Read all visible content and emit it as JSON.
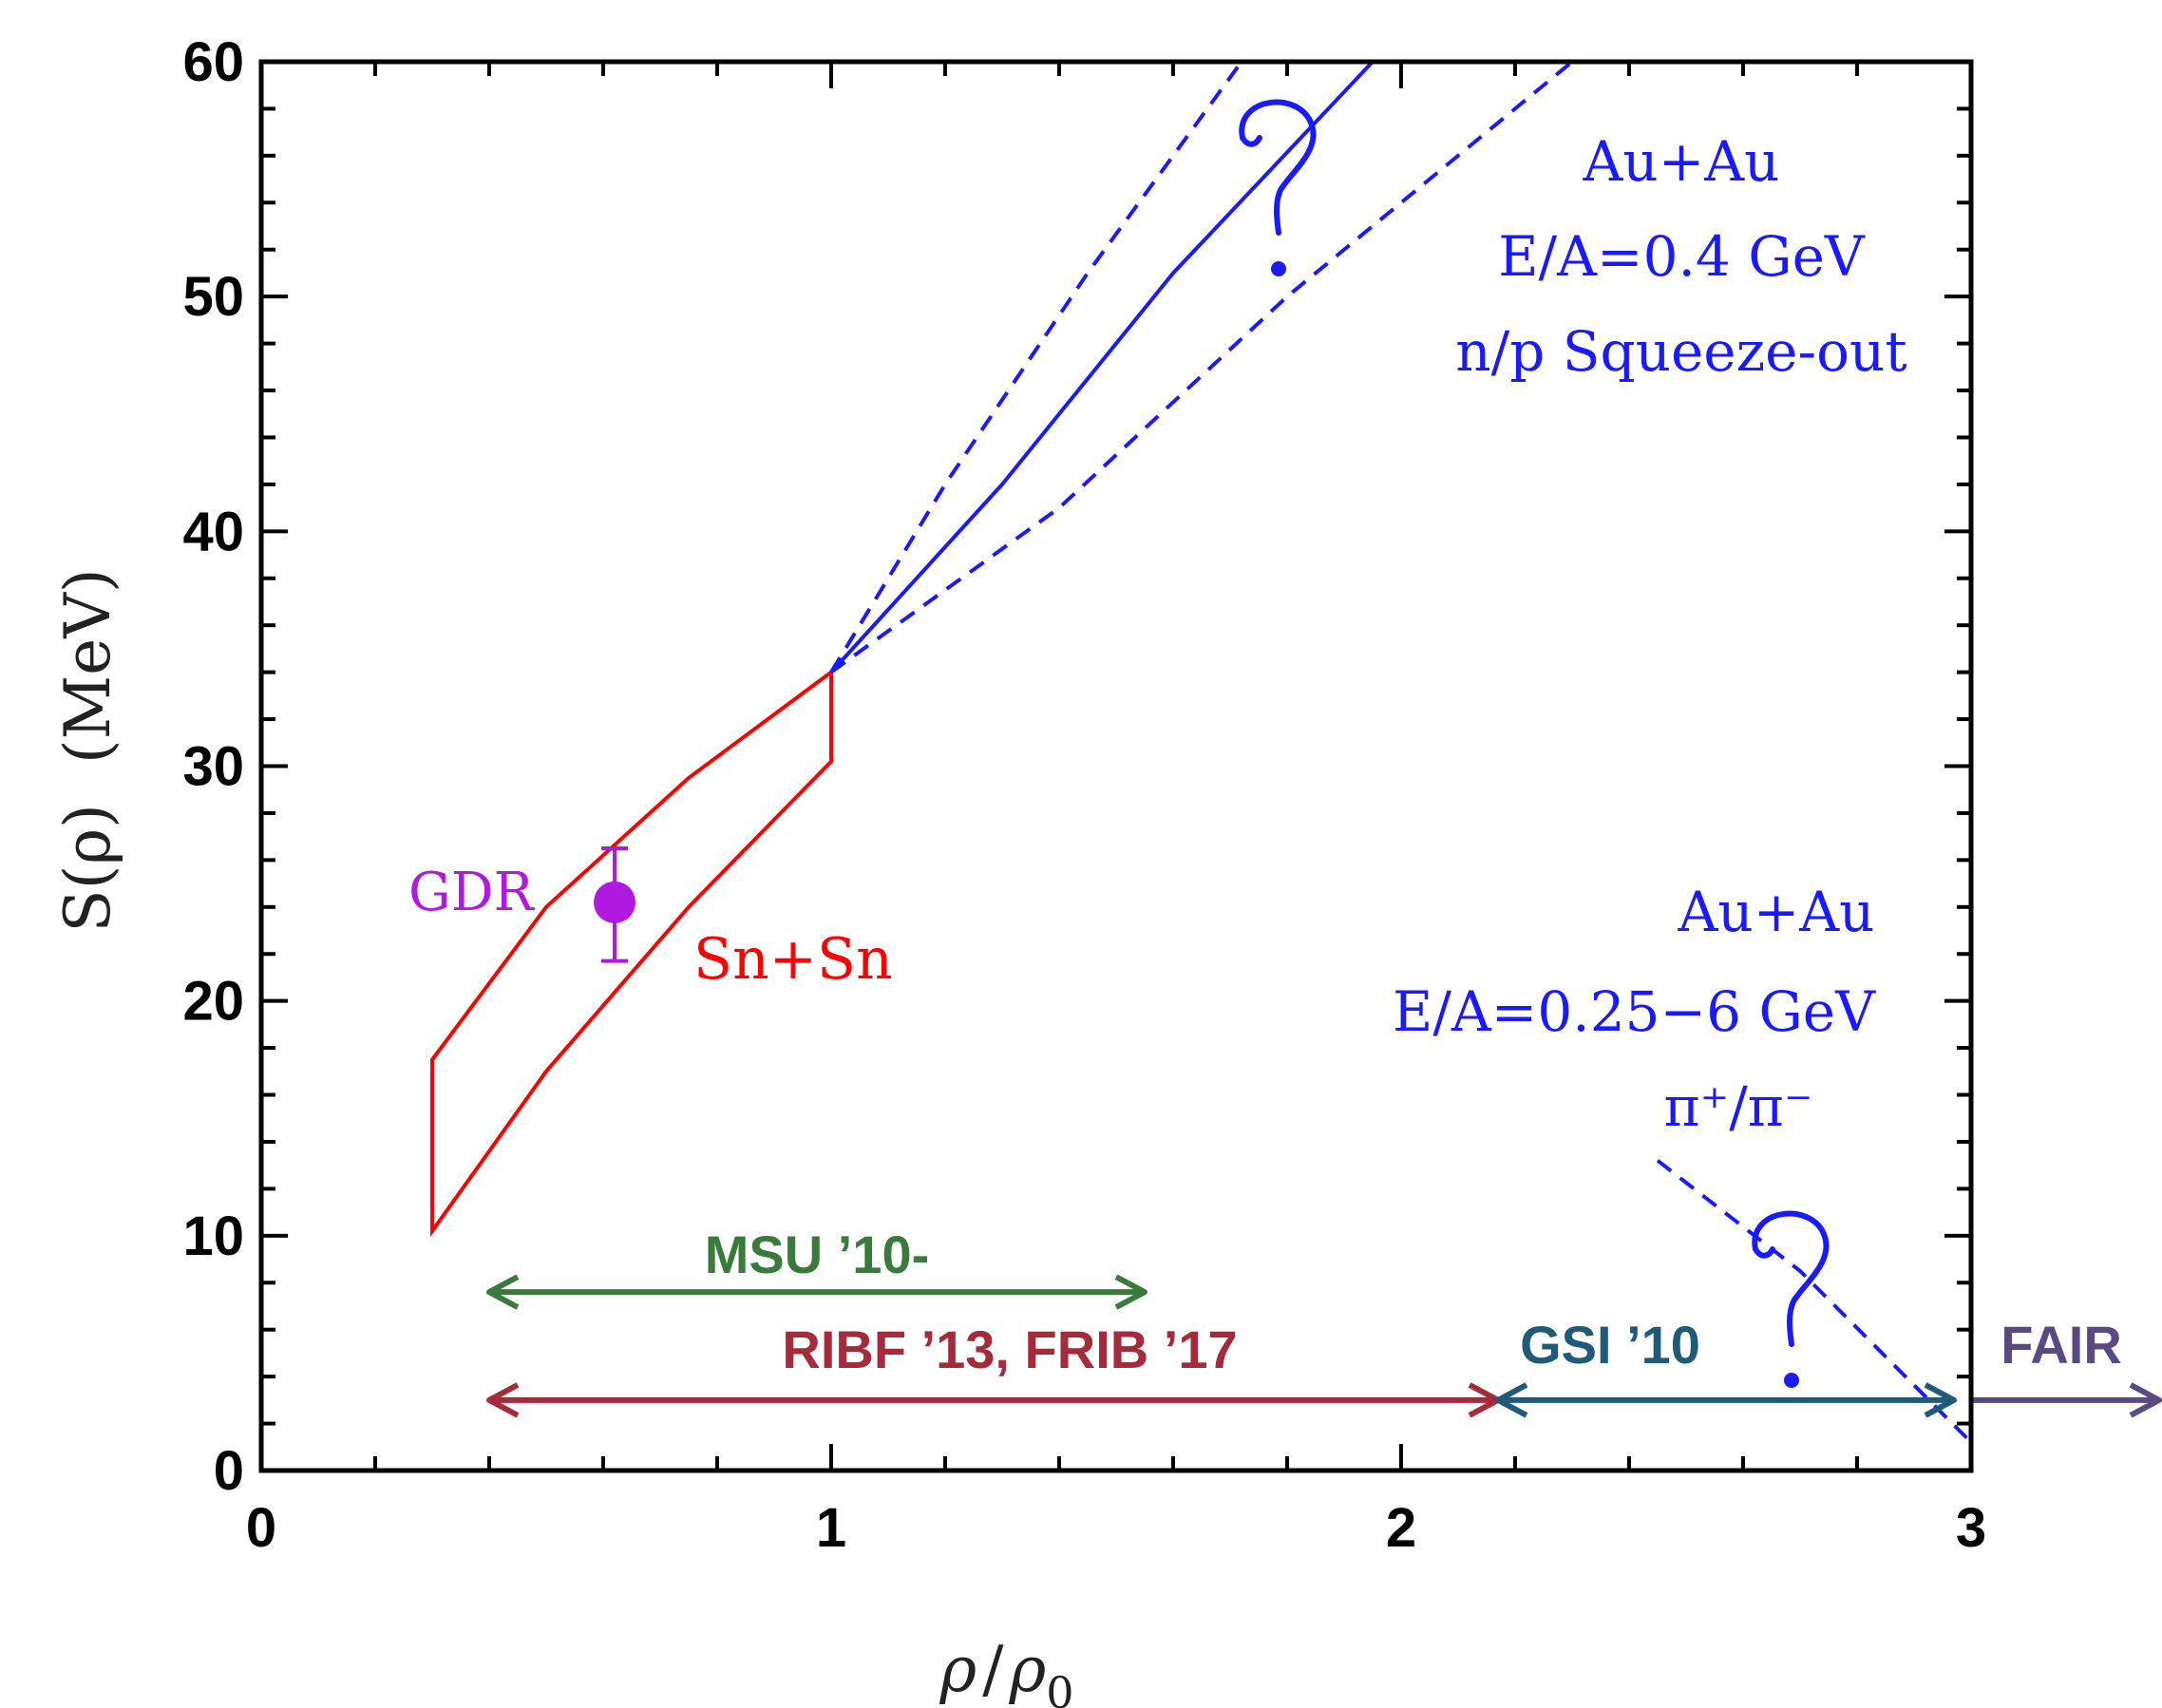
{
  "chart_data": {
    "type": "line",
    "title": "",
    "xlabel": "ρ/ρ₀",
    "ylabel": "S(ρ)  (MeV)",
    "xlim": [
      0,
      3
    ],
    "ylim": [
      0,
      60
    ],
    "x_ticks": [
      "0",
      "1",
      "2",
      "3"
    ],
    "y_ticks": [
      "0",
      "10",
      "20",
      "30",
      "40",
      "50",
      "60"
    ],
    "grid": false,
    "colors": {
      "squeeze": "#1a1aff",
      "snsn": "#ff0000",
      "gdr": "#b01ae0",
      "msu": "#3a7a3a",
      "ribf": "#a52a3a",
      "gsi": "#1f5a78",
      "fair": "#5a4a82"
    },
    "snsn_region": {
      "label": "Sn+Sn",
      "upper": [
        [
          0.3,
          17.5
        ],
        [
          0.5,
          24
        ],
        [
          0.75,
          29.5
        ],
        [
          1.0,
          34
        ]
      ],
      "lower": [
        [
          0.3,
          10.2
        ],
        [
          0.5,
          17
        ],
        [
          0.75,
          24
        ],
        [
          1.0,
          30.2
        ]
      ]
    },
    "gdr_point": {
      "label": "GDR",
      "x": 0.62,
      "y": 24.2,
      "err_low": 21.7,
      "err_high": 26.5
    },
    "squeeze_out": {
      "label_lines": [
        "Au+Au",
        "E/A=0.4 GeV",
        "n/p Squeeze-out"
      ],
      "central": [
        [
          1.0,
          34
        ],
        [
          1.3,
          42
        ],
        [
          1.6,
          51
        ],
        [
          1.95,
          60
        ]
      ],
      "upper": [
        [
          1.0,
          34
        ],
        [
          1.2,
          42
        ],
        [
          1.45,
          51
        ],
        [
          1.72,
          60
        ]
      ],
      "lower": [
        [
          1.0,
          34
        ],
        [
          1.4,
          41
        ],
        [
          1.8,
          50
        ],
        [
          2.3,
          60
        ]
      ]
    },
    "pion_ratio": {
      "label_lines": [
        "Au+Au",
        "E/A=0.25−6 GeV",
        "π⁺/π⁻"
      ],
      "line": [
        [
          2.45,
          13.2
        ],
        [
          2.7,
          8.5
        ],
        [
          3.0,
          1.2
        ]
      ]
    },
    "facility_ranges": [
      {
        "label": "MSU ’10-",
        "x_start": 0.4,
        "x_end": 1.55,
        "y": 7.6
      },
      {
        "label": "RIBF ’13, FRIB ’17",
        "x_start": 0.4,
        "x_end": 2.17,
        "y": 3
      },
      {
        "label": "GSI ’10",
        "x_start": 2.17,
        "x_end": 2.97,
        "y": 3
      },
      {
        "label": "FAIR",
        "x_start": 3.0,
        "x_end": 3.33,
        "y": 3
      }
    ]
  }
}
